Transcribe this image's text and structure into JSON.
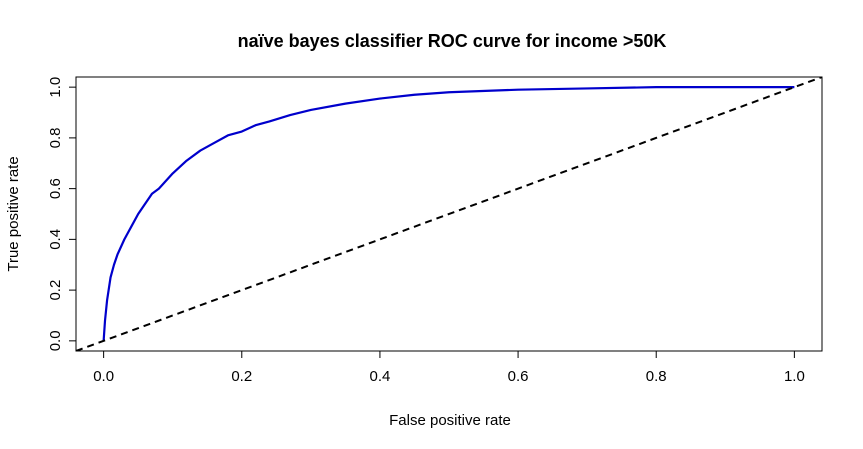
{
  "chart_data": {
    "type": "line",
    "title": "naïve bayes classifier ROC curve for income >50K",
    "xlabel": "False positive rate",
    "ylabel": "True positive rate",
    "xlim": [
      -0.04,
      1.04
    ],
    "ylim": [
      -0.04,
      1.04
    ],
    "xticks": [
      "0.0",
      "0.2",
      "0.4",
      "0.6",
      "0.8",
      "1.0"
    ],
    "yticks": [
      "0.0",
      "0.2",
      "0.4",
      "0.6",
      "0.8",
      "1.0"
    ],
    "grid": false,
    "legend": "none",
    "series": [
      {
        "color": "#0000cc",
        "line_style": "solid",
        "x": [
          0,
          0.002,
          0.005,
          0.01,
          0.015,
          0.02,
          0.03,
          0.04,
          0.05,
          0.06,
          0.07,
          0.08,
          0.1,
          0.12,
          0.14,
          0.16,
          0.18,
          0.2,
          0.22,
          0.24,
          0.27,
          0.3,
          0.35,
          0.4,
          0.45,
          0.5,
          0.6,
          0.7,
          0.8,
          0.9,
          1.0
        ],
        "y": [
          0,
          0.08,
          0.16,
          0.25,
          0.3,
          0.34,
          0.4,
          0.45,
          0.5,
          0.54,
          0.58,
          0.6,
          0.66,
          0.71,
          0.75,
          0.78,
          0.81,
          0.825,
          0.85,
          0.865,
          0.89,
          0.91,
          0.935,
          0.955,
          0.97,
          0.98,
          0.99,
          0.995,
          1.0,
          1.0,
          1.0
        ]
      },
      {
        "color": "#000000",
        "line_style": "dashed",
        "x": [
          -0.04,
          1.04
        ],
        "y": [
          -0.04,
          1.04
        ]
      }
    ]
  }
}
